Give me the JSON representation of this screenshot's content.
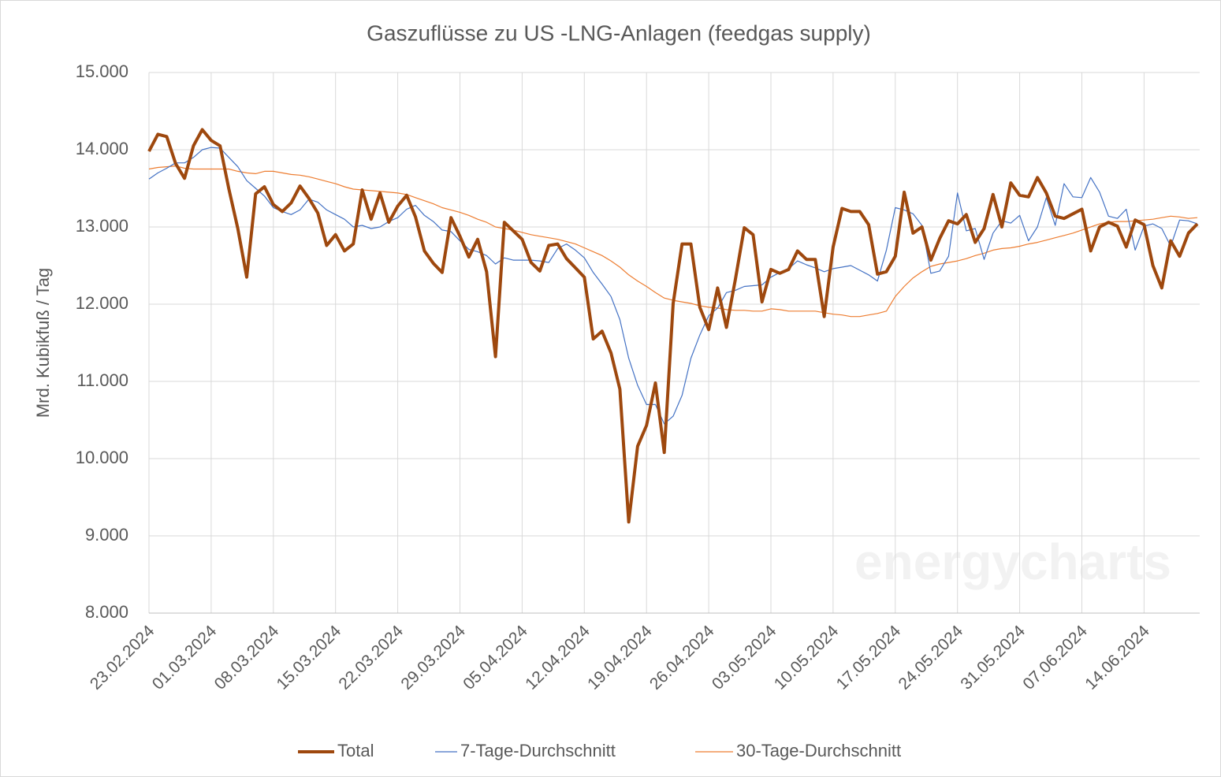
{
  "chart_data": {
    "type": "line",
    "title": "Gaszuflüsse zu US -LNG-Anlagen (feedgas supply)",
    "y_label": "Mrd. Kubikfuß / Tag",
    "watermark": "energycharts",
    "categories": [
      "23.02.2024",
      null,
      null,
      null,
      null,
      null,
      null,
      "01.03.2024",
      null,
      null,
      null,
      null,
      null,
      null,
      "08.03.2024",
      null,
      null,
      null,
      null,
      null,
      null,
      "15.03.2024",
      null,
      null,
      null,
      null,
      null,
      null,
      "22.03.2024",
      null,
      null,
      null,
      null,
      null,
      null,
      "29.03.2024",
      null,
      null,
      null,
      null,
      null,
      null,
      "05.04.2024",
      null,
      null,
      null,
      null,
      null,
      null,
      "12.04.2024",
      null,
      null,
      null,
      null,
      null,
      null,
      "19.04.2024",
      null,
      null,
      null,
      null,
      null,
      null,
      "26.04.2024",
      null,
      null,
      null,
      null,
      null,
      null,
      "03.05.2024",
      null,
      null,
      null,
      null,
      null,
      null,
      "10.05.2024",
      null,
      null,
      null,
      null,
      null,
      null,
      "17.05.2024",
      null,
      null,
      null,
      null,
      null,
      null,
      "24.05.2024",
      null,
      null,
      null,
      null,
      null,
      null,
      "31.05.2024",
      null,
      null,
      null,
      null,
      null,
      null,
      "07.06.2024",
      null,
      null,
      null,
      null,
      null,
      null,
      "14.06.2024",
      null,
      null,
      null,
      null,
      null,
      null
    ],
    "series": [
      {
        "name": "Total",
        "color": "#9e480e",
        "width": 4,
        "values": [
          13980,
          14200,
          14170,
          13820,
          13630,
          14050,
          14260,
          14120,
          14050,
          13490,
          12980,
          12350,
          13430,
          13520,
          13290,
          13200,
          13310,
          13530,
          13370,
          13180,
          12760,
          12900,
          12690,
          12780,
          13480,
          13100,
          13440,
          13060,
          13270,
          13410,
          13130,
          12690,
          12530,
          12410,
          13120,
          12880,
          12610,
          12840,
          12420,
          11320,
          13060,
          12950,
          12840,
          12540,
          12430,
          12760,
          12780,
          12590,
          12470,
          12350,
          11550,
          11650,
          11370,
          10900,
          9180,
          10160,
          10430,
          10980,
          10080,
          12010,
          12780,
          12780,
          11960,
          11670,
          12210,
          11700,
          12320,
          12990,
          12900,
          12030,
          12450,
          12400,
          12450,
          12690,
          12580,
          12580,
          11840,
          12740,
          13240,
          13200,
          13200,
          13030,
          12390,
          12420,
          12620,
          13450,
          12920,
          13000,
          12570,
          12850,
          13080,
          13040,
          13160,
          12800,
          12980,
          13420,
          13000,
          13570,
          13410,
          13390,
          13640,
          13440,
          13140,
          13110,
          13170,
          13230,
          12690,
          13000,
          13060,
          13010,
          12740,
          13090,
          13030,
          12500,
          12210,
          12820,
          12620,
          12920,
          13040
        ]
      },
      {
        "name": "7-Tage-Durchschnitt",
        "color": "#4472c4",
        "width": 1.2,
        "values": [
          13620,
          13700,
          13760,
          13830,
          13830,
          13900,
          14000,
          14030,
          14020,
          13900,
          13780,
          13600,
          13500,
          13400,
          13250,
          13200,
          13160,
          13220,
          13360,
          13320,
          13220,
          13160,
          13100,
          13000,
          13020,
          12980,
          13000,
          13070,
          13120,
          13230,
          13280,
          13150,
          13070,
          12960,
          12940,
          12820,
          12710,
          12680,
          12630,
          12520,
          12600,
          12570,
          12570,
          12570,
          12560,
          12540,
          12720,
          12780,
          12700,
          12600,
          12410,
          12260,
          12100,
          11800,
          11300,
          10950,
          10700,
          10700,
          10450,
          10550,
          10820,
          11300,
          11600,
          11850,
          11950,
          12150,
          12180,
          12230,
          12240,
          12250,
          12350,
          12410,
          12460,
          12560,
          12510,
          12470,
          12420,
          12460,
          12480,
          12500,
          12440,
          12380,
          12300,
          12700,
          13250,
          13220,
          13170,
          13020,
          12400,
          12430,
          12620,
          13440,
          12950,
          12980,
          12580,
          12920,
          13080,
          13050,
          13150,
          12820,
          13000,
          13380,
          13020,
          13560,
          13390,
          13380,
          13640,
          13450,
          13140,
          13110,
          13230,
          12700,
          13010,
          13040,
          12980,
          12750,
          13090,
          13080,
          13040
        ]
      },
      {
        "name": "30-Tage-Durchschnitt",
        "color": "#ed7d31",
        "width": 1.2,
        "values": [
          13750,
          13770,
          13780,
          13790,
          13760,
          13750,
          13750,
          13750,
          13750,
          13750,
          13720,
          13700,
          13690,
          13720,
          13720,
          13700,
          13680,
          13670,
          13650,
          13620,
          13590,
          13560,
          13520,
          13490,
          13480,
          13470,
          13460,
          13450,
          13440,
          13420,
          13380,
          13340,
          13300,
          13250,
          13220,
          13190,
          13150,
          13100,
          13060,
          13000,
          12980,
          12960,
          12930,
          12900,
          12880,
          12860,
          12840,
          12810,
          12780,
          12730,
          12680,
          12630,
          12560,
          12480,
          12380,
          12300,
          12230,
          12150,
          12080,
          12050,
          12030,
          12010,
          11980,
          11960,
          11950,
          11930,
          11920,
          11920,
          11910,
          11910,
          11940,
          11930,
          11910,
          11910,
          11910,
          11910,
          11890,
          11870,
          11860,
          11840,
          11840,
          11860,
          11880,
          11910,
          12100,
          12230,
          12340,
          12420,
          12490,
          12520,
          12540,
          12560,
          12590,
          12630,
          12660,
          12700,
          12720,
          12730,
          12750,
          12780,
          12800,
          12830,
          12860,
          12890,
          12920,
          12960,
          13000,
          13040,
          13060,
          13070,
          13070,
          13080,
          13090,
          13100,
          13120,
          13140,
          13130,
          13110,
          13120
        ]
      }
    ],
    "ylim": [
      8000,
      15000
    ],
    "yticks": [
      {
        "value": 8000,
        "label": "8.000"
      },
      {
        "value": 9000,
        "label": "9.000"
      },
      {
        "value": 10000,
        "label": "10.000"
      },
      {
        "value": 11000,
        "label": "11.000"
      },
      {
        "value": 12000,
        "label": "12.000"
      },
      {
        "value": 13000,
        "label": "13.000"
      },
      {
        "value": 14000,
        "label": "14.000"
      },
      {
        "value": 15000,
        "label": "15.000"
      }
    ],
    "grid": true,
    "legend": "bottom"
  }
}
